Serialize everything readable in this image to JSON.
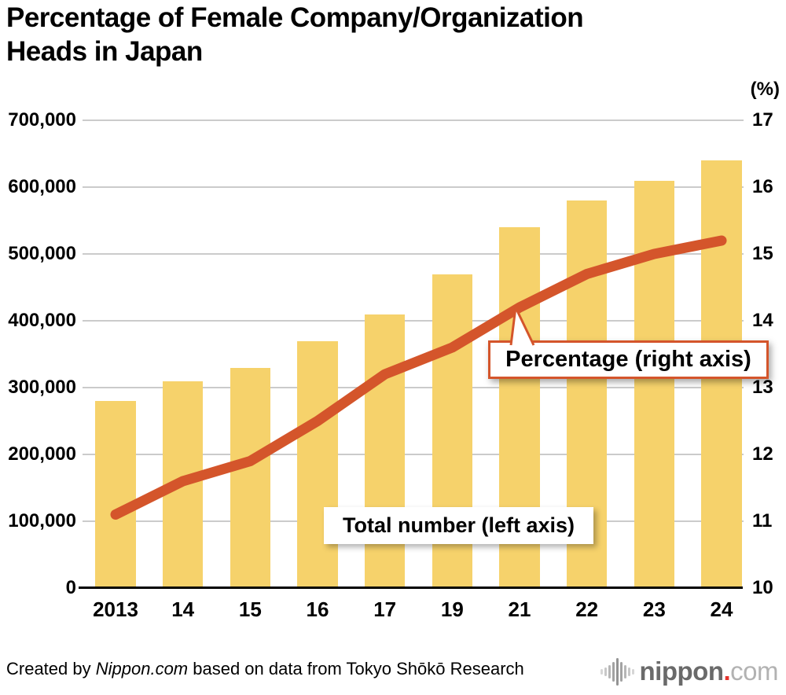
{
  "title": "Percentage of Female Company/Organization\nHeads in Japan",
  "right_axis_unit": "(%)",
  "annotations": {
    "percentage_label": "Percentage (right axis)",
    "total_label": "Total number (left axis)"
  },
  "footer": {
    "credit_prefix": "Created by ",
    "credit_source": "Nippon.com",
    "credit_suffix": " based on data from Tokyo Shōkō Research",
    "logo_name": "nippon",
    "logo_dot": ".",
    "logo_tld": "com"
  },
  "colors": {
    "bar": "#F6D26B",
    "line": "#D4552B",
    "grid": "#CBCBCB",
    "axis": "#000000",
    "callout_border": "#D4552B",
    "logo_gray": "#6A6A6A",
    "logo_light": "#B2B2B2",
    "logo_red": "#E5322C"
  },
  "chart_data": {
    "type": "bar",
    "subtype": "bar+line combo",
    "title": "Percentage of Female Company/Organization Heads in Japan",
    "categories": [
      "2013",
      "14",
      "15",
      "16",
      "17",
      "19",
      "21",
      "22",
      "23",
      "24"
    ],
    "series": [
      {
        "name": "Total number (left axis)",
        "type": "bar",
        "axis": "left",
        "values": [
          280000,
          310000,
          330000,
          370000,
          410000,
          470000,
          540000,
          580000,
          610000,
          640000
        ]
      },
      {
        "name": "Percentage (right axis)",
        "type": "line",
        "axis": "right",
        "values": [
          11.1,
          11.6,
          11.9,
          12.5,
          13.2,
          13.6,
          14.2,
          14.7,
          15.0,
          15.2
        ]
      }
    ],
    "left_axis": {
      "min": 0,
      "max": 700000,
      "tick_step": 100000,
      "tick_labels": [
        "0",
        "100,000",
        "200,000",
        "300,000",
        "400,000",
        "500,000",
        "600,000",
        "700,000"
      ]
    },
    "right_axis": {
      "min": 10,
      "max": 17,
      "tick_step": 1,
      "unit": "(%)",
      "tick_labels": [
        "10",
        "11",
        "12",
        "13",
        "14",
        "15",
        "16",
        "17"
      ]
    },
    "grid": "horizontal",
    "legend_position": "inline callouts",
    "source_note": "Created by Nippon.com based on data from Tokyo Shōkō Research"
  }
}
